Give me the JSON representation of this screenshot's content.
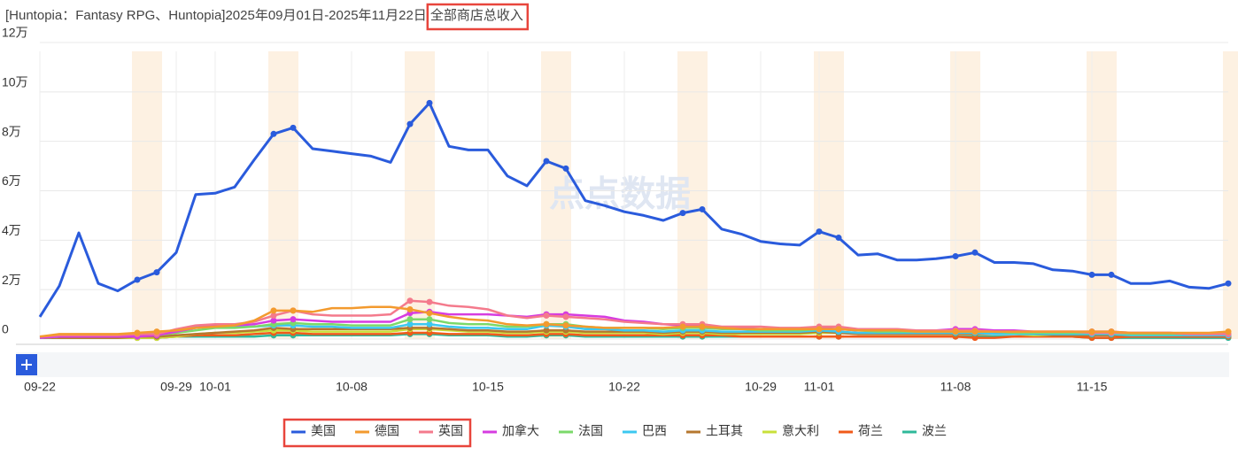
{
  "chart_data": {
    "type": "line",
    "title": "[Huntopia：Fantasy RPG、Huntopia]2025年09月01日-2025年11月22日",
    "title_highlight": "全部商店总收入",
    "watermark": "点点数据",
    "categories": [
      "09-22",
      null,
      null,
      null,
      null,
      null,
      null,
      "09-29",
      null,
      "10-01",
      null,
      null,
      null,
      null,
      null,
      null,
      "10-08",
      null,
      null,
      null,
      null,
      null,
      null,
      "10-15",
      null,
      null,
      null,
      null,
      null,
      null,
      "10-22",
      null,
      null,
      null,
      null,
      null,
      null,
      "10-29",
      null,
      null,
      "11-01",
      null,
      null,
      null,
      null,
      null,
      null,
      "11-08",
      null,
      null,
      null,
      null,
      null,
      null,
      "11-15",
      null,
      null,
      null,
      null,
      null,
      null,
      null
    ],
    "ylim": [
      0,
      12
    ],
    "yticks": [
      0,
      {
        "value": 2,
        "label": "2万"
      },
      {
        "value": 4,
        "label": "4万"
      },
      {
        "value": 6,
        "label": "6万"
      },
      {
        "value": 8,
        "label": "8万"
      },
      {
        "value": 10,
        "label": "10万"
      },
      {
        "value": 12,
        "label": "12万"
      }
    ],
    "grid": true,
    "series": [
      {
        "name": "美国",
        "color": "#2a5bdc",
        "values": [
          0.9,
          2.15,
          4.3,
          2.25,
          1.95,
          2.4,
          2.7,
          3.5,
          5.85,
          5.9,
          6.15,
          7.25,
          8.3,
          8.55,
          7.7,
          7.6,
          7.5,
          7.4,
          7.15,
          8.7,
          9.55,
          7.8,
          7.65,
          7.65,
          6.6,
          6.2,
          7.2,
          6.9,
          5.6,
          5.4,
          5.15,
          5.0,
          4.8,
          5.1,
          5.25,
          4.45,
          4.25,
          3.95,
          3.85,
          3.8,
          4.35,
          4.1,
          3.4,
          3.45,
          3.2,
          3.2,
          3.25,
          3.35,
          3.5,
          3.1,
          3.1,
          3.05,
          2.8,
          2.75,
          2.6,
          2.6,
          2.25,
          2.25,
          2.35,
          2.1,
          2.05,
          2.25
        ]
      },
      {
        "name": "德国",
        "color": "#f39a2e",
        "values": [
          0.1,
          0.2,
          0.2,
          0.2,
          0.2,
          0.25,
          0.3,
          0.35,
          0.45,
          0.5,
          0.55,
          0.75,
          1.15,
          1.15,
          1.1,
          1.25,
          1.25,
          1.3,
          1.3,
          1.2,
          1.05,
          0.9,
          0.8,
          0.75,
          0.6,
          0.55,
          0.6,
          0.55,
          0.5,
          0.45,
          0.45,
          0.45,
          0.45,
          0.5,
          0.5,
          0.45,
          0.4,
          0.4,
          0.4,
          0.4,
          0.4,
          0.4,
          0.35,
          0.35,
          0.35,
          0.3,
          0.3,
          0.3,
          0.3,
          0.3,
          0.3,
          0.3,
          0.3,
          0.3,
          0.3,
          0.3,
          0.25,
          0.25,
          0.25,
          0.25,
          0.25,
          0.3
        ]
      },
      {
        "name": "英国",
        "color": "#f47a8c",
        "values": [
          0.1,
          0.15,
          0.15,
          0.15,
          0.15,
          0.2,
          0.2,
          0.4,
          0.55,
          0.6,
          0.6,
          0.7,
          0.95,
          1.15,
          1.0,
          0.95,
          0.95,
          0.95,
          1.0,
          1.55,
          1.5,
          1.35,
          1.3,
          1.2,
          0.95,
          0.85,
          0.95,
          0.9,
          0.85,
          0.8,
          0.7,
          0.65,
          0.6,
          0.6,
          0.6,
          0.5,
          0.5,
          0.5,
          0.45,
          0.45,
          0.5,
          0.5,
          0.4,
          0.4,
          0.4,
          0.35,
          0.35,
          0.35,
          0.35,
          0.3,
          0.3,
          0.3,
          0.3,
          0.3,
          0.25,
          0.25,
          0.25,
          0.25,
          0.25,
          0.2,
          0.2,
          0.2
        ]
      },
      {
        "name": "加拿大",
        "color": "#d63ce0",
        "values": [
          0.05,
          0.1,
          0.1,
          0.1,
          0.1,
          0.1,
          0.15,
          0.3,
          0.45,
          0.55,
          0.55,
          0.6,
          0.75,
          0.8,
          0.75,
          0.7,
          0.7,
          0.7,
          0.7,
          1.05,
          1.1,
          1.0,
          1.0,
          1.0,
          0.95,
          0.9,
          1.0,
          1.0,
          0.95,
          0.9,
          0.75,
          0.7,
          0.6,
          0.55,
          0.5,
          0.45,
          0.45,
          0.4,
          0.4,
          0.4,
          0.45,
          0.4,
          0.35,
          0.35,
          0.35,
          0.35,
          0.35,
          0.4,
          0.4,
          0.35,
          0.35,
          0.3,
          0.3,
          0.3,
          0.3,
          0.3,
          0.25,
          0.25,
          0.25,
          0.2,
          0.2,
          0.2
        ]
      },
      {
        "name": "法国",
        "color": "#7bd96a",
        "values": [
          0.05,
          0.1,
          0.1,
          0.1,
          0.1,
          0.15,
          0.15,
          0.25,
          0.35,
          0.45,
          0.45,
          0.5,
          0.6,
          0.65,
          0.6,
          0.6,
          0.55,
          0.55,
          0.55,
          0.8,
          0.8,
          0.65,
          0.6,
          0.6,
          0.5,
          0.5,
          0.6,
          0.6,
          0.5,
          0.45,
          0.45,
          0.45,
          0.4,
          0.45,
          0.45,
          0.4,
          0.4,
          0.35,
          0.35,
          0.35,
          0.4,
          0.4,
          0.35,
          0.3,
          0.3,
          0.3,
          0.3,
          0.3,
          0.3,
          0.3,
          0.25,
          0.25,
          0.25,
          0.25,
          0.25,
          0.25,
          0.2,
          0.2,
          0.2,
          0.2,
          0.2,
          0.2
        ]
      },
      {
        "name": "巴西",
        "color": "#3cc8f0",
        "values": [
          0.05,
          0.1,
          0.1,
          0.1,
          0.15,
          0.2,
          0.2,
          0.35,
          0.5,
          0.55,
          0.5,
          0.5,
          0.55,
          0.55,
          0.5,
          0.5,
          0.45,
          0.45,
          0.45,
          0.6,
          0.6,
          0.5,
          0.45,
          0.45,
          0.4,
          0.4,
          0.55,
          0.5,
          0.4,
          0.4,
          0.35,
          0.35,
          0.3,
          0.35,
          0.35,
          0.3,
          0.3,
          0.3,
          0.3,
          0.3,
          0.35,
          0.3,
          0.25,
          0.25,
          0.25,
          0.25,
          0.25,
          0.25,
          0.25,
          0.2,
          0.2,
          0.2,
          0.2,
          0.2,
          0.2,
          0.2,
          0.15,
          0.15,
          0.15,
          0.15,
          0.15,
          0.15
        ]
      },
      {
        "name": "土耳其",
        "color": "#b5772f",
        "values": [
          0.05,
          0.05,
          0.05,
          0.05,
          0.05,
          0.1,
          0.1,
          0.15,
          0.2,
          0.25,
          0.3,
          0.35,
          0.45,
          0.4,
          0.4,
          0.4,
          0.4,
          0.4,
          0.4,
          0.45,
          0.45,
          0.4,
          0.35,
          0.35,
          0.3,
          0.3,
          0.35,
          0.35,
          0.3,
          0.3,
          0.3,
          0.3,
          0.25,
          0.3,
          0.3,
          0.25,
          0.25,
          0.25,
          0.25,
          0.25,
          0.3,
          0.25,
          0.2,
          0.2,
          0.2,
          0.2,
          0.2,
          0.2,
          0.2,
          0.2,
          0.2,
          0.2,
          0.15,
          0.15,
          0.15,
          0.15,
          0.15,
          0.15,
          0.15,
          0.15,
          0.15,
          0.15
        ]
      },
      {
        "name": "意大利",
        "color": "#c9e03a",
        "values": [
          0.05,
          0.05,
          0.05,
          0.05,
          0.05,
          0.05,
          0.05,
          0.1,
          0.2,
          0.25,
          0.25,
          0.3,
          0.35,
          0.35,
          0.3,
          0.3,
          0.3,
          0.3,
          0.3,
          0.4,
          0.4,
          0.35,
          0.3,
          0.3,
          0.25,
          0.25,
          0.3,
          0.3,
          0.25,
          0.25,
          0.25,
          0.25,
          0.2,
          0.25,
          0.25,
          0.2,
          0.2,
          0.2,
          0.2,
          0.2,
          0.25,
          0.25,
          0.2,
          0.2,
          0.2,
          0.2,
          0.2,
          0.2,
          0.2,
          0.2,
          0.2,
          0.15,
          0.15,
          0.15,
          0.15,
          0.15,
          0.15,
          0.15,
          0.15,
          0.15,
          0.15,
          0.15
        ]
      },
      {
        "name": "荷兰",
        "color": "#f05a1a",
        "values": [
          0.05,
          0.05,
          0.05,
          0.05,
          0.05,
          0.05,
          0.05,
          0.1,
          0.15,
          0.15,
          0.15,
          0.2,
          0.25,
          0.25,
          0.2,
          0.2,
          0.2,
          0.2,
          0.2,
          0.25,
          0.25,
          0.2,
          0.2,
          0.2,
          0.15,
          0.15,
          0.2,
          0.2,
          0.15,
          0.15,
          0.15,
          0.15,
          0.15,
          0.15,
          0.15,
          0.15,
          0.1,
          0.1,
          0.1,
          0.1,
          0.1,
          0.1,
          0.1,
          0.1,
          0.1,
          0.1,
          0.1,
          0.1,
          0.05,
          0.05,
          0.1,
          0.1,
          0.1,
          0.1,
          0.05,
          0.05,
          0.1,
          0.1,
          0.1,
          0.1,
          0.1,
          0.1
        ]
      },
      {
        "name": "波兰",
        "color": "#2fb89a",
        "values": [
          0.05,
          0.05,
          0.05,
          0.05,
          0.05,
          0.05,
          0.05,
          0.1,
          0.1,
          0.1,
          0.1,
          0.1,
          0.15,
          0.15,
          0.15,
          0.15,
          0.15,
          0.15,
          0.15,
          0.2,
          0.2,
          0.15,
          0.15,
          0.15,
          0.1,
          0.1,
          0.15,
          0.15,
          0.1,
          0.1,
          0.1,
          0.1,
          0.1,
          0.1,
          0.1,
          0.1,
          0.1,
          0.1,
          0.1,
          0.1,
          0.1,
          0.1,
          0.1,
          0.1,
          0.1,
          0.1,
          0.1,
          0.1,
          0.1,
          0.1,
          0.1,
          0.1,
          0.1,
          0.1,
          0.05,
          0.05,
          0.05,
          0.05,
          0.05,
          0.05,
          0.05,
          0.05
        ]
      }
    ]
  }
}
